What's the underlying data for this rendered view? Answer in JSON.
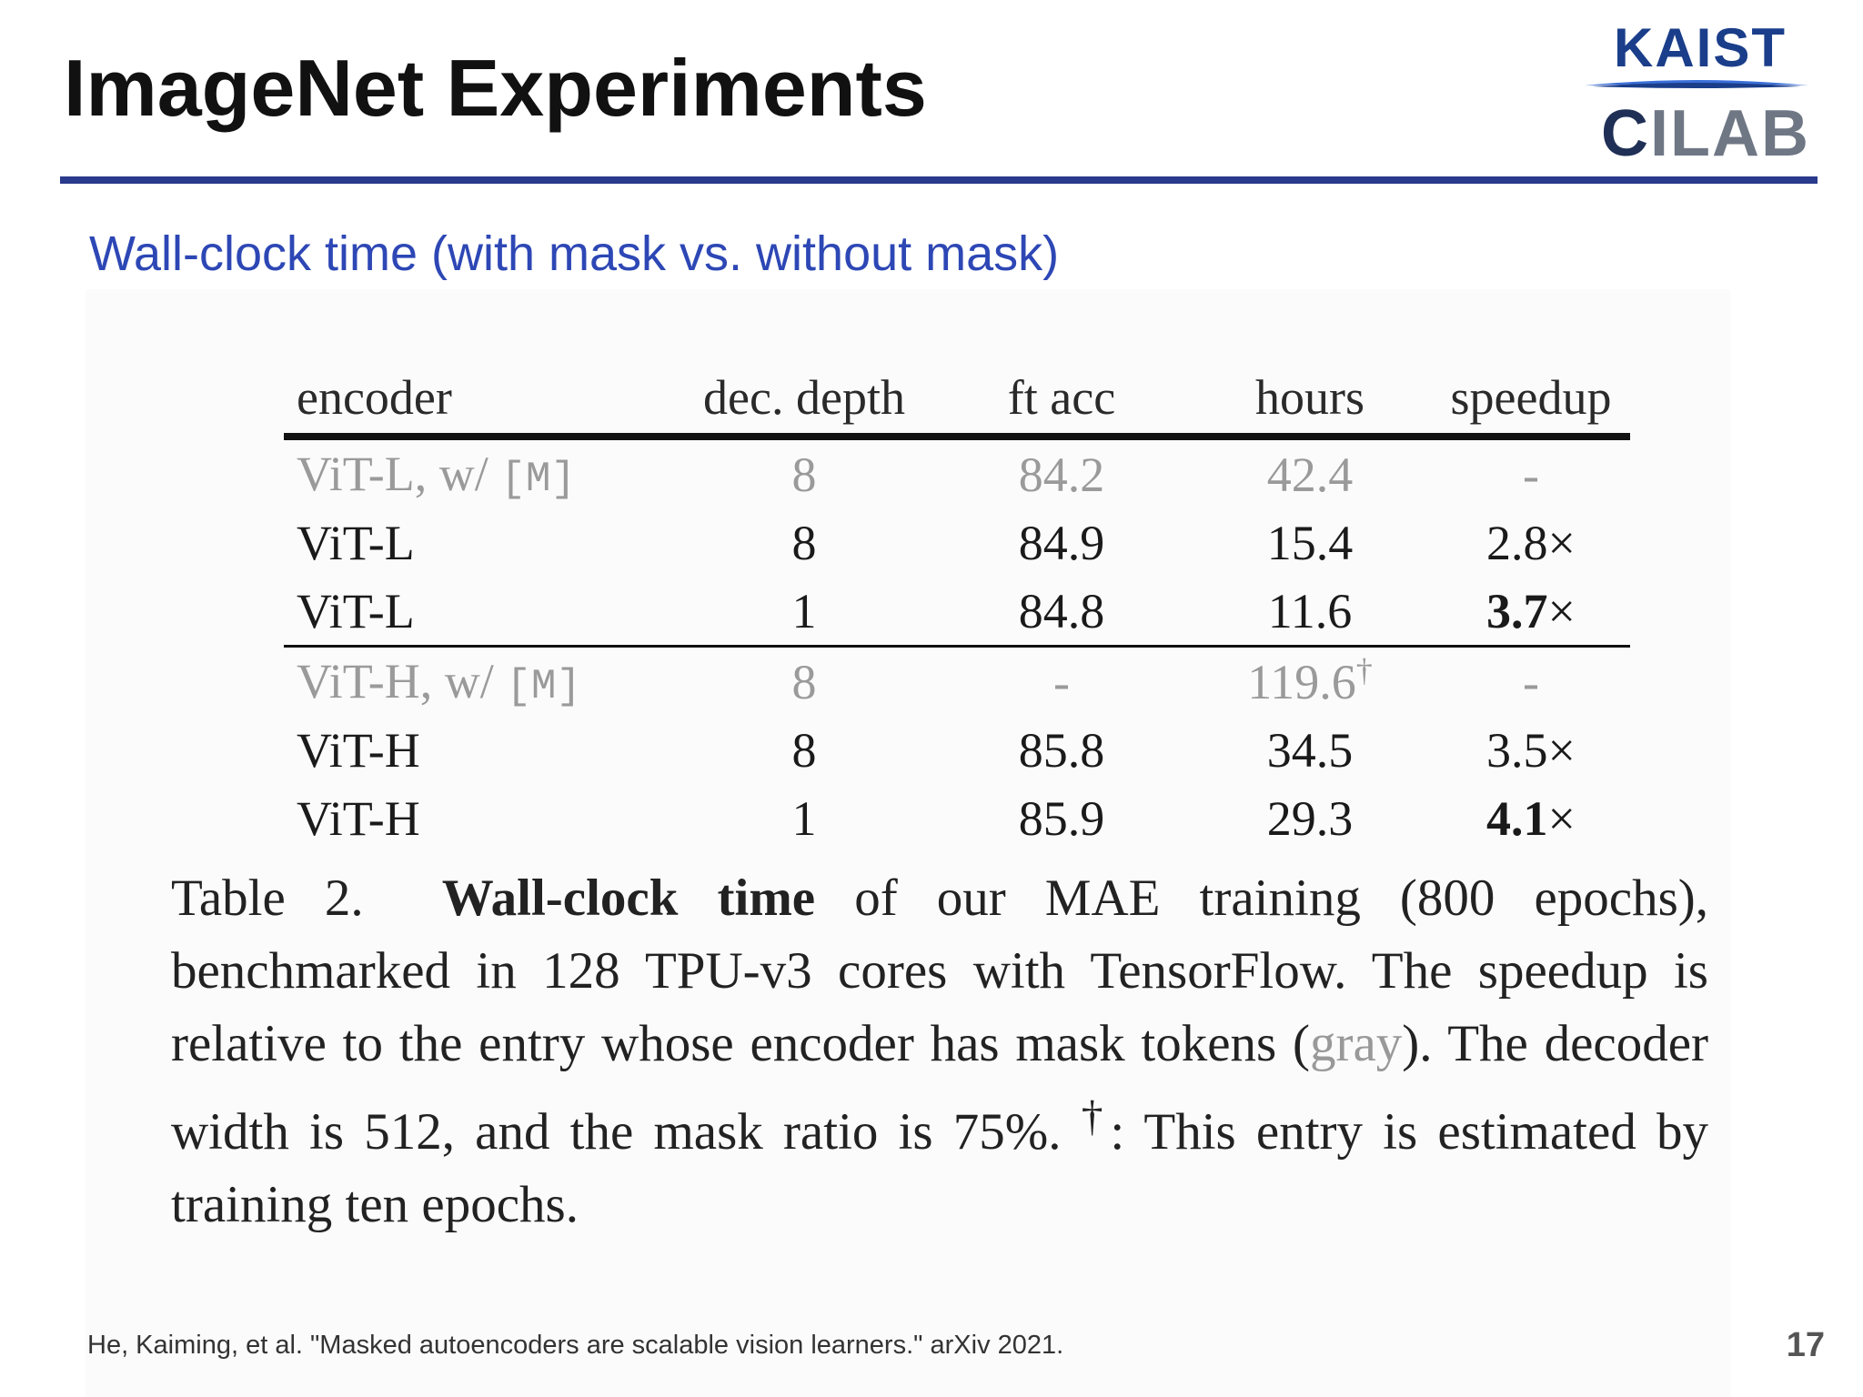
{
  "slide": {
    "title": "ImageNet Experiments",
    "subtitle": "Wall-clock time (with mask vs. without mask)",
    "page_number": "17",
    "citation": "He, Kaiming, et al. \"Masked autoencoders are scalable vision learners.\" arXiv 2021."
  },
  "logo": {
    "top": "KAIST",
    "bottom_first": "C",
    "bottom_rest": "ILAB"
  },
  "table": {
    "headers": [
      "encoder",
      "dec. depth",
      "ft acc",
      "hours",
      "speedup"
    ],
    "rows": [
      {
        "encoder": "ViT-L, w/ ",
        "token": "[M]",
        "dec_depth": "8",
        "ft_acc": "84.2",
        "hours": "42.4",
        "hours_mark": "",
        "speedup": "-",
        "speedup_num": "",
        "speedup_suffix": ""
      },
      {
        "encoder": "ViT-L",
        "token": "",
        "dec_depth": "8",
        "ft_acc": "84.9",
        "hours": "15.4",
        "hours_mark": "",
        "speedup": "",
        "speedup_num": "2.8",
        "speedup_suffix": "×"
      },
      {
        "encoder": "ViT-L",
        "token": "",
        "dec_depth": "1",
        "ft_acc": "84.8",
        "hours": "11.6",
        "hours_mark": "",
        "speedup": "",
        "speedup_num": "3.7",
        "speedup_suffix": "×"
      },
      {
        "encoder": "ViT-H, w/ ",
        "token": "[M]",
        "dec_depth": "8",
        "ft_acc": "-",
        "hours": "119.6",
        "hours_mark": "†",
        "speedup": "-",
        "speedup_num": "",
        "speedup_suffix": ""
      },
      {
        "encoder": "ViT-H",
        "token": "",
        "dec_depth": "8",
        "ft_acc": "85.8",
        "hours": "34.5",
        "hours_mark": "",
        "speedup": "",
        "speedup_num": "3.5",
        "speedup_suffix": "×"
      },
      {
        "encoder": "ViT-H",
        "token": "",
        "dec_depth": "1",
        "ft_acc": "85.9",
        "hours": "29.3",
        "hours_mark": "",
        "speedup": "",
        "speedup_num": "4.1",
        "speedup_suffix": "×"
      }
    ]
  },
  "caption": {
    "label": "Table 2.",
    "bold": "Wall-clock time",
    "text_1": " of our MAE training (800 epochs), benchmarked in 128 TPU-v3 cores with TensorFlow. The speedup is relative to the entry whose encoder has mask tokens (",
    "gray_word": "gray",
    "text_2": "). The decoder width is 512, and the mask ratio is 75%. ",
    "dagger": "†",
    "text_3": ": This entry is estimated by training ten epochs."
  }
}
